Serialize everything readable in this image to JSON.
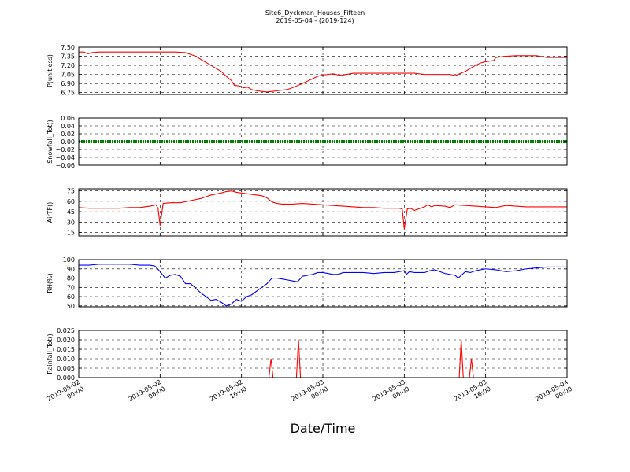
{
  "figure": {
    "title_line1": "Site6_Dyckman_Houses_Fifteen",
    "title_line2": "2019-05-04 - (2019-124)",
    "xlabel": "Date/Time"
  },
  "chart_data": [
    {
      "type": "line",
      "ylabel": "P(unitless)",
      "ylim": [
        6.72,
        7.5
      ],
      "yticks": [
        6.75,
        6.9,
        7.05,
        7.2,
        7.35,
        7.5
      ],
      "ytick_labels": [
        "6.75",
        "6.90",
        "7.05",
        "7.20",
        "7.35",
        "7.50"
      ],
      "series": [
        {
          "color": "#ff0000",
          "x": [
            0,
            0.5,
            0.9,
            1.3,
            2,
            4,
            6,
            8,
            9.5,
            10.5,
            11,
            11.5,
            12,
            13,
            14,
            14.5,
            15,
            15.3,
            15.8,
            16.2,
            16.6,
            17,
            17.5,
            18,
            18.5,
            19,
            19.5,
            20,
            20.5,
            21,
            22,
            23,
            23.5,
            24,
            24.5,
            25,
            25.5,
            26,
            27,
            28,
            29,
            30,
            31,
            32,
            33,
            34,
            35,
            36,
            36.5,
            37,
            38,
            39,
            39.5,
            40,
            40.8,
            41,
            42,
            43,
            44,
            45,
            46,
            47,
            48
          ],
          "y": [
            7.42,
            7.42,
            7.39,
            7.41,
            7.42,
            7.42,
            7.42,
            7.42,
            7.42,
            7.41,
            7.38,
            7.35,
            7.3,
            7.2,
            7.1,
            7.02,
            6.95,
            6.87,
            6.86,
            6.83,
            6.84,
            6.8,
            6.78,
            6.77,
            6.76,
            6.77,
            6.78,
            6.79,
            6.8,
            6.83,
            6.9,
            6.98,
            7.02,
            7.04,
            7.05,
            7.06,
            7.04,
            7.04,
            7.07,
            7.07,
            7.07,
            7.07,
            7.07,
            7.07,
            7.07,
            7.05,
            7.05,
            7.05,
            7.05,
            7.03,
            7.1,
            7.2,
            7.24,
            7.26,
            7.28,
            7.33,
            7.35,
            7.36,
            7.36,
            7.36,
            7.33,
            7.33,
            7.33
          ]
        }
      ]
    },
    {
      "type": "line",
      "ylabel": "Snowfall_Tot()",
      "ylim": [
        -0.06,
        0.06
      ],
      "yticks": [
        -0.06,
        -0.04,
        -0.02,
        0,
        0.02,
        0.04,
        0.06
      ],
      "ytick_labels": [
        "−0.06",
        "−0.04",
        "−0.02",
        "0.00",
        "0.02",
        "0.04",
        "0.06"
      ],
      "series": [
        {
          "color": "#008000",
          "x": [
            0,
            48
          ],
          "y": [
            0,
            0
          ]
        }
      ]
    },
    {
      "type": "line",
      "ylabel": "AirTF()",
      "ylim": [
        10,
        78
      ],
      "yticks": [
        15,
        30,
        45,
        60,
        75
      ],
      "ytick_labels": [
        "15",
        "30",
        "45",
        "60",
        "75"
      ],
      "series": [
        {
          "color": "#ff0000",
          "x": [
            0,
            1,
            2,
            3,
            4,
            5,
            6,
            7,
            7.6,
            7.8,
            8.0,
            8.3,
            9,
            10,
            11,
            12,
            13,
            14,
            14.5,
            15,
            15.5,
            16,
            16.5,
            17,
            18,
            18.5,
            19,
            19.5,
            20,
            21,
            22,
            23,
            24,
            25,
            26,
            27,
            28,
            29,
            30,
            31,
            31.5,
            31.8,
            32.0,
            32.3,
            32.6,
            33,
            34,
            34.3,
            34.7,
            35,
            36,
            36.5,
            37,
            38,
            39,
            40,
            41,
            42,
            43,
            44,
            45,
            46,
            47,
            48
          ],
          "y": [
            51,
            50,
            50,
            50,
            50,
            51,
            51,
            53,
            55,
            50,
            25,
            57,
            58,
            58,
            61,
            64,
            69,
            72,
            74,
            75,
            73,
            72,
            71,
            70,
            68,
            65,
            59,
            57,
            56,
            56,
            57,
            56,
            55,
            54,
            53,
            52,
            51,
            51,
            50,
            50,
            50,
            49,
            20,
            49,
            50,
            47,
            52,
            55,
            52,
            54,
            53,
            51,
            55,
            54,
            53,
            52,
            51,
            54,
            53,
            52,
            52,
            52,
            52,
            52
          ]
        }
      ]
    },
    {
      "type": "line",
      "ylabel": "RH(%)",
      "ylim": [
        49,
        100
      ],
      "yticks": [
        50,
        60,
        70,
        80,
        90,
        100
      ],
      "ytick_labels": [
        "50",
        "60",
        "70",
        "80",
        "90",
        "100"
      ],
      "series": [
        {
          "color": "#0000ff",
          "x": [
            0,
            1,
            2,
            3,
            4,
            5,
            6,
            7,
            7.5,
            8,
            8.5,
            9,
            9.5,
            10,
            10.5,
            11,
            11.5,
            12,
            12.5,
            13,
            13.5,
            14,
            14.5,
            15,
            15.5,
            16,
            16.5,
            17,
            17.5,
            18,
            18.5,
            19,
            19.5,
            20,
            20.5,
            21,
            21.5,
            22,
            22.5,
            23,
            23.5,
            24,
            25,
            25.5,
            26,
            27,
            28,
            29,
            30,
            31,
            31.5,
            32,
            32.2,
            32.5,
            33,
            34,
            34.5,
            35,
            36,
            37,
            37.3,
            38,
            38.5,
            39,
            40,
            41,
            42,
            43,
            44,
            45,
            46,
            47,
            48
          ],
          "y": [
            94,
            94,
            95,
            95,
            95,
            95,
            94,
            94,
            93,
            87,
            80,
            83,
            84,
            82,
            74,
            74,
            69,
            64,
            60,
            56,
            57,
            54,
            50,
            52,
            57,
            55,
            60,
            62,
            66,
            70,
            74,
            80,
            80,
            79,
            78,
            77,
            76,
            82,
            83,
            84,
            86,
            86,
            84,
            84,
            86,
            86,
            86,
            85,
            86,
            86,
            87,
            88,
            84,
            87,
            86,
            86,
            88,
            89,
            85,
            83,
            80,
            87,
            86,
            88,
            90,
            89,
            87,
            88,
            90,
            91,
            92,
            92,
            92
          ]
        }
      ]
    },
    {
      "type": "line",
      "ylabel": "Rainfall_Tot()",
      "ylim": [
        0,
        0.025
      ],
      "yticks": [
        0,
        0.005,
        0.01,
        0.015,
        0.02,
        0.025
      ],
      "ytick_labels": [
        "0.000",
        "0.005",
        "0.010",
        "0.015",
        "0.020",
        "0.025"
      ],
      "series": [
        {
          "color": "#ff0000",
          "x": [
            0,
            18.7,
            18.9,
            19.1,
            21.4,
            21.6,
            21.8,
            37.4,
            37.6,
            37.8,
            38.4,
            38.6,
            38.8,
            48
          ],
          "y": [
            0,
            0,
            0.01,
            0,
            0,
            0.02,
            0,
            0,
            0.02,
            0,
            0,
            0.01,
            0,
            0
          ]
        }
      ]
    }
  ],
  "xaxis": {
    "range_hours": [
      0,
      48
    ],
    "ticks_hours": [
      0,
      8,
      16,
      24,
      32,
      40,
      48
    ],
    "tick_labels": [
      [
        "2019-05-02",
        "00:00"
      ],
      [
        "2019-05-02",
        "08:00"
      ],
      [
        "2019-05-02",
        "16:00"
      ],
      [
        "2019-05-03",
        "00:00"
      ],
      [
        "2019-05-03",
        "08:00"
      ],
      [
        "2019-05-03",
        "16:00"
      ],
      [
        "2019-05-04",
        "00:00"
      ]
    ]
  }
}
